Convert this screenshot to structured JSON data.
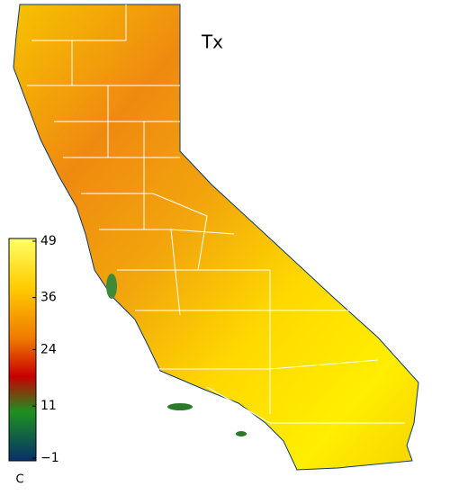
{
  "map": {
    "title": "Tx",
    "colorbar": {
      "unit": "C",
      "lim": [
        -1,
        49
      ],
      "ticks": [
        49,
        36,
        24,
        11,
        {
          "value": -1,
          "label": "−1"
        }
      ]
    }
  }
}
